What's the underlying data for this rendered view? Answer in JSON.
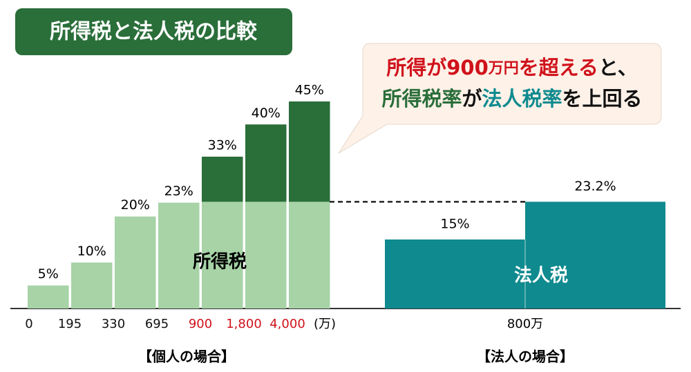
{
  "title": "所得税と法人税の比較",
  "callout": {
    "lines": [
      [
        {
          "text": "所得が",
          "color": "#d0121b"
        },
        {
          "text": "900",
          "color": "#d0121b"
        },
        {
          "text": "万円",
          "color": "#d0121b"
        },
        {
          "text": "を超える",
          "color": "#d0121b"
        },
        {
          "text": "と、",
          "color": "#111111"
        }
      ],
      [
        {
          "text": "所得税率",
          "color": "#2a6e3a"
        },
        {
          "text": "が",
          "color": "#111111"
        },
        {
          "text": "法人税率",
          "color": "#0f8a8f"
        },
        {
          "text": "を上回る",
          "color": "#111111"
        }
      ]
    ]
  },
  "chart_data": [
    {
      "type": "bar",
      "label": "所得税",
      "group_label": "【個人の場合】",
      "x_unit": "(万)",
      "categories": [
        "0",
        "195",
        "330",
        "695",
        "900",
        "1,800",
        "4,000"
      ],
      "category_colors": [
        "#111111",
        "#111111",
        "#111111",
        "#111111",
        "#d0121b",
        "#d0121b",
        "#d0121b"
      ],
      "values": [
        5,
        10,
        20,
        23,
        33,
        40,
        45
      ],
      "value_labels": [
        "5%",
        "10%",
        "20%",
        "23%",
        "33%",
        "40%",
        "45%"
      ],
      "color": "#a7d3a7",
      "upper_color": "#2a6e3a",
      "ylim": [
        0,
        45
      ]
    },
    {
      "type": "bar",
      "label": "法人税",
      "group_label": "【法人の場合】",
      "x_label": "800万",
      "values": [
        15,
        23.2
      ],
      "value_labels": [
        "15%",
        "23.2%"
      ],
      "color": "#0f8a8f",
      "ylim": [
        0,
        45
      ]
    }
  ]
}
